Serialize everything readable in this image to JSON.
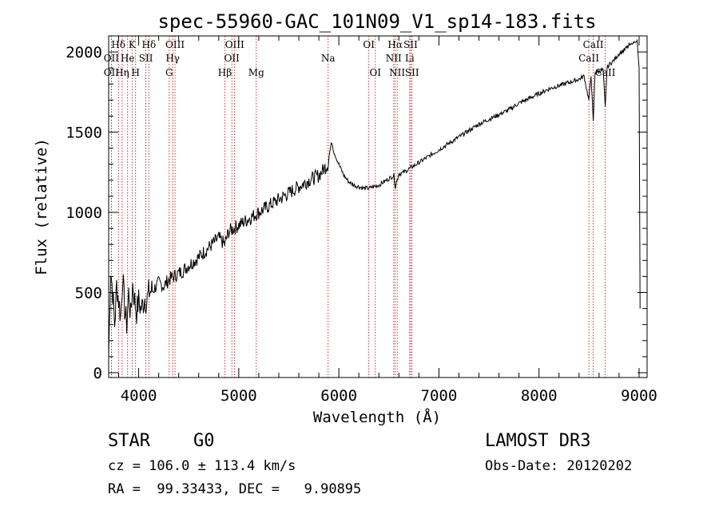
{
  "chart_data": {
    "type": "line",
    "title": "spec-55960-GAC_101N09_V1_sp14-183.fits",
    "xlabel": "Wavelength (Å)",
    "ylabel": "Flux (relative)",
    "xlim": [
      3700,
      9080
    ],
    "ylim": [
      -30,
      2100
    ],
    "xticks": [
      4000,
      5000,
      6000,
      7000,
      8000,
      9000
    ],
    "yticks": [
      0,
      500,
      1000,
      1500,
      2000
    ],
    "xtick_labels": [
      "4000",
      "5000",
      "6000",
      "7000",
      "8000",
      "9000"
    ],
    "ytick_labels": [
      "0",
      "500",
      "1000",
      "1500",
      "2000"
    ],
    "series": [
      {
        "name": "flux",
        "x": [
          3700,
          3720,
          3740,
          3760,
          3780,
          3800,
          3820,
          3840,
          3860,
          3880,
          3900,
          3920,
          3940,
          3960,
          3980,
          4000,
          4020,
          4040,
          4060,
          4080,
          4100,
          4150,
          4200,
          4250,
          4300,
          4350,
          4400,
          4450,
          4500,
          4600,
          4700,
          4800,
          4860,
          4900,
          5000,
          5100,
          5200,
          5300,
          5400,
          5500,
          5600,
          5700,
          5800,
          5850,
          5890,
          5910,
          5930,
          5950,
          5980,
          6000,
          6050,
          6100,
          6150,
          6200,
          6250,
          6300,
          6350,
          6400,
          6450,
          6500,
          6550,
          6563,
          6600,
          6650,
          6700,
          6750,
          6800,
          6900,
          7000,
          7100,
          7200,
          7300,
          7400,
          7500,
          7600,
          7700,
          7800,
          7900,
          8000,
          8100,
          8200,
          8300,
          8400,
          8450,
          8498,
          8520,
          8542,
          8560,
          8600,
          8640,
          8662,
          8680,
          8700,
          8750,
          8800,
          8850,
          8900,
          8950,
          8980,
          9000,
          9010
        ],
        "y": [
          100,
          650,
          500,
          300,
          550,
          450,
          350,
          600,
          400,
          300,
          500,
          350,
          550,
          450,
          380,
          450,
          400,
          420,
          470,
          440,
          500,
          520,
          560,
          540,
          580,
          600,
          620,
          640,
          670,
          720,
          780,
          840,
          800,
          880,
          920,
          960,
          1000,
          1040,
          1080,
          1120,
          1160,
          1200,
          1230,
          1270,
          1300,
          1380,
          1440,
          1380,
          1330,
          1300,
          1230,
          1190,
          1170,
          1160,
          1150,
          1150,
          1160,
          1170,
          1190,
          1210,
          1230,
          1160,
          1240,
          1250,
          1270,
          1290,
          1310,
          1350,
          1390,
          1430,
          1470,
          1510,
          1550,
          1580,
          1610,
          1640,
          1680,
          1710,
          1740,
          1770,
          1790,
          1810,
          1830,
          1850,
          1700,
          1860,
          1560,
          1870,
          1880,
          1890,
          1650,
          1900,
          1920,
          1950,
          1990,
          2010,
          2040,
          2060,
          2070,
          1900,
          400
        ]
      }
    ],
    "spectral_lines": [
      {
        "name": "Hδ",
        "wave": 3798,
        "row": 0
      },
      {
        "name": "K",
        "wave": 3934,
        "row": 0
      },
      {
        "name": "Hδ",
        "wave": 4102,
        "row": 0
      },
      {
        "name": "OIII",
        "wave": 4363,
        "row": 0
      },
      {
        "name": "OIII",
        "wave": 4959,
        "row": 0
      },
      {
        "name": "OI",
        "wave": 6300,
        "row": 0
      },
      {
        "name": "Hα",
        "wave": 6563,
        "row": 0
      },
      {
        "name": "SII",
        "wave": 6717,
        "row": 0
      },
      {
        "name": "CaII",
        "wave": 8542,
        "row": 0
      },
      {
        "name": "OII",
        "wave": 3727,
        "row": 1
      },
      {
        "name": "He",
        "wave": 3889,
        "row": 1
      },
      {
        "name": "SII",
        "wave": 4072,
        "row": 1
      },
      {
        "name": "Hγ",
        "wave": 4340,
        "row": 1
      },
      {
        "name": "OII",
        "wave": 4931,
        "row": 1
      },
      {
        "name": "Na",
        "wave": 5893,
        "row": 1
      },
      {
        "name": "NII",
        "wave": 6548,
        "row": 1
      },
      {
        "name": "Li",
        "wave": 6708,
        "row": 1
      },
      {
        "name": "CaII",
        "wave": 8498,
        "row": 1
      },
      {
        "name": "OII",
        "wave": 3727,
        "row": 2
      },
      {
        "name": "Hη",
        "wave": 3835,
        "row": 2
      },
      {
        "name": "H",
        "wave": 3969,
        "row": 2
      },
      {
        "name": "G",
        "wave": 4305,
        "row": 2
      },
      {
        "name": "Hβ",
        "wave": 4861,
        "row": 2
      },
      {
        "name": "Mg",
        "wave": 5175,
        "row": 2
      },
      {
        "name": "OI",
        "wave": 6364,
        "row": 2
      },
      {
        "name": "NII",
        "wave": 6583,
        "row": 2
      },
      {
        "name": "SII",
        "wave": 6731,
        "row": 2
      },
      {
        "name": "CaII",
        "wave": 8662,
        "row": 2
      }
    ]
  },
  "info": {
    "object_class": "STAR",
    "subclass": "G0",
    "survey": "LAMOST DR3",
    "redshift": "cz = 106.0 ± 113.4 km/s",
    "obs_date": "Obs-Date: 20120202",
    "coords": "RA =  99.33433, DEC =   9.90895"
  },
  "colors": {
    "line": "#000000",
    "marker": "#cc0000",
    "axes": "#000000"
  }
}
